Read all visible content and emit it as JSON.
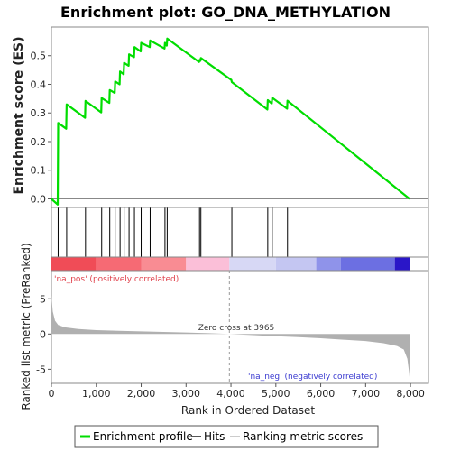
{
  "chart_data": {
    "type": "line",
    "title": "Enrichment plot: GO_DNA_METHYLATION",
    "xlabel": "Rank in Ordered Dataset",
    "ylabel_top": "Enrichment score (ES)",
    "ylabel_bottom": "Ranked list metric (PreRanked)",
    "xlim": [
      0,
      8400
    ],
    "x_ticks": [
      0,
      1000,
      2000,
      3000,
      4000,
      5000,
      6000,
      7000,
      8000
    ],
    "x_tick_labels": [
      "0",
      "1,000",
      "2,000",
      "3,000",
      "4,000",
      "5,000",
      "6,000",
      "7,000",
      "8,000"
    ],
    "es_ylim": [
      -0.03,
      0.6
    ],
    "es_ticks": [
      0.0,
      0.1,
      0.2,
      0.3,
      0.4,
      0.5
    ],
    "es_tick_labels": [
      "0.0",
      "0.1",
      "0.2",
      "0.3",
      "0.4",
      "0.5"
    ],
    "metric_ylim": [
      -7,
      9
    ],
    "metric_ticks": [
      -5,
      0,
      5
    ],
    "metric_tick_labels": [
      "-5",
      "0",
      "5"
    ],
    "hits": [
      150,
      340,
      760,
      1120,
      1300,
      1420,
      1530,
      1620,
      1730,
      1850,
      2000,
      2200,
      2530,
      2580,
      3300,
      3330,
      4020,
      4820,
      4920,
      5260
    ],
    "es_profile": {
      "x": [
        0,
        140,
        150,
        330,
        340,
        750,
        760,
        1110,
        1120,
        1290,
        1300,
        1410,
        1420,
        1520,
        1530,
        1610,
        1620,
        1720,
        1730,
        1840,
        1850,
        1990,
        2000,
        2190,
        2200,
        2520,
        2530,
        2570,
        2580,
        3290,
        3300,
        3320,
        3330,
        4010,
        4020,
        4810,
        4820,
        4910,
        4920,
        5250,
        5260,
        7980
      ],
      "y": [
        0.0,
        -0.02,
        0.265,
        0.245,
        0.33,
        0.283,
        0.342,
        0.302,
        0.352,
        0.335,
        0.38,
        0.37,
        0.41,
        0.4,
        0.445,
        0.435,
        0.475,
        0.465,
        0.505,
        0.495,
        0.53,
        0.515,
        0.545,
        0.53,
        0.553,
        0.525,
        0.545,
        0.535,
        0.56,
        0.478,
        0.485,
        0.482,
        0.492,
        0.415,
        0.408,
        0.312,
        0.345,
        0.333,
        0.353,
        0.315,
        0.343,
        0.0
      ]
    },
    "metric_profile": {
      "x": [
        0,
        30,
        80,
        150,
        300,
        600,
        1000,
        1500,
        2000,
        2500,
        3000,
        3500,
        3965,
        4500,
        5000,
        5500,
        6000,
        6500,
        7000,
        7400,
        7700,
        7850,
        7930,
        7970,
        7990
      ],
      "y": [
        5.5,
        3.2,
        1.9,
        1.3,
        0.95,
        0.7,
        0.55,
        0.45,
        0.37,
        0.3,
        0.22,
        0.12,
        0.0,
        -0.15,
        -0.3,
        -0.45,
        -0.6,
        -0.8,
        -1.0,
        -1.3,
        -1.7,
        -2.2,
        -3.5,
        -5.5,
        -7.0
      ]
    },
    "zero_cross": 3965,
    "zero_cross_label": "Zero cross at 3965",
    "pos_label": "'na_pos' (positively correlated)",
    "neg_label": "'na_neg' (negatively correlated)",
    "colorbar_segments": [
      {
        "start": 0,
        "end": 1000,
        "color": "#f04c57"
      },
      {
        "start": 1000,
        "end": 2000,
        "color": "#f66a74"
      },
      {
        "start": 2000,
        "end": 3000,
        "color": "#f98c93"
      },
      {
        "start": 3000,
        "end": 3965,
        "color": "#fbbfd8"
      },
      {
        "start": 3965,
        "end": 5000,
        "color": "#d7d8f5"
      },
      {
        "start": 5000,
        "end": 5900,
        "color": "#c4c6f2"
      },
      {
        "start": 5900,
        "end": 6450,
        "color": "#8f93ea"
      },
      {
        "start": 6450,
        "end": 7650,
        "color": "#6c6fe2"
      },
      {
        "start": 7650,
        "end": 7980,
        "color": "#2a16c8"
      }
    ],
    "colors": {
      "es_line": "#00dd00",
      "hit": "#000000",
      "metric_fill": "#b0b0b0",
      "pos_text": "#e0424c",
      "neg_text": "#3a3ad0",
      "frame": "#888888"
    },
    "legend": [
      "Enrichment profile",
      "Hits",
      "Ranking metric scores"
    ]
  }
}
